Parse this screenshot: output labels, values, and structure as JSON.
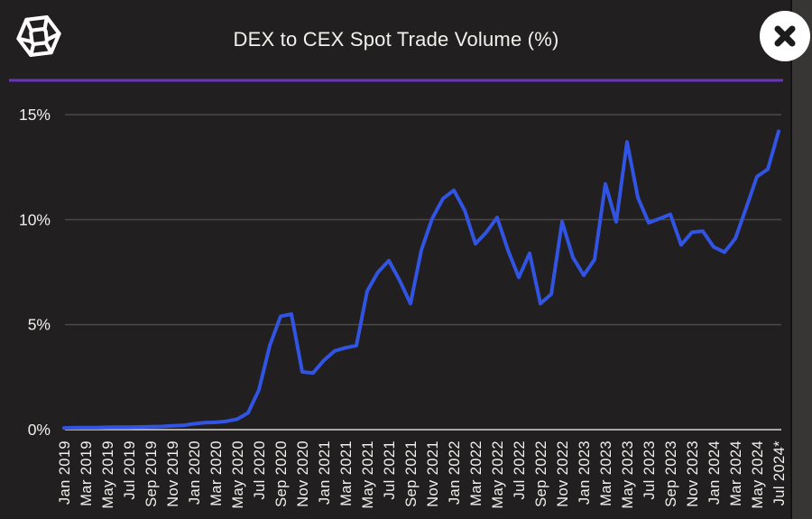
{
  "header": {
    "title": "DEX to CEX Spot Trade Volume (%)",
    "logo": "the-block-cube-logo",
    "close_icon": "x"
  },
  "colors": {
    "background": "#211f1f",
    "side_strip": "#383535",
    "line": "#3254e3",
    "grid": "#4c4949",
    "zero_axis": "#a9a7a4",
    "text": "#f1f0ee",
    "divider_purple": "#6a35bd",
    "close_bg": "#ffffff",
    "close_x": "#1c1b1b"
  },
  "chart_data": {
    "type": "line",
    "title": "DEX to CEX Spot Trade Volume (%)",
    "xlabel": "",
    "ylabel": "",
    "ylim": [
      0,
      15
    ],
    "grid": true,
    "legend_position": "none",
    "y_ticks": [
      {
        "label": "0%",
        "value": 0
      },
      {
        "label": "5%",
        "value": 5
      },
      {
        "label": "10%",
        "value": 10
      },
      {
        "label": "15%",
        "value": 15
      }
    ],
    "x_tick_labels": [
      "Jan 2019",
      "Mar 2019",
      "May 2019",
      "Jul 2019",
      "Sep 2019",
      "Nov 2019",
      "Jan 2020",
      "Mar 2020",
      "May 2020",
      "Jul 2020",
      "Sep 2020",
      "Nov 2020",
      "Jan 2021",
      "Mar 2021",
      "May 2021",
      "Jul 2021",
      "Sep 2021",
      "Nov 2021",
      "Jan 2022",
      "Mar 2022",
      "May 2022",
      "Jul 2022",
      "Sep 2022",
      "Nov 2022",
      "Jan 2023",
      "Mar 2023",
      "May 2023",
      "Jul 2023",
      "Sep 2023",
      "Nov 2023",
      "Jan 2024",
      "Mar 2024",
      "May 2024",
      "Jul 2024*"
    ],
    "series": [
      {
        "name": "DEX to CEX spot trade volume (%)",
        "interval": "monthly",
        "x_start": "Jan 2019",
        "x_end": "Jul 2024",
        "values": [
          0.08,
          0.09,
          0.1,
          0.1,
          0.11,
          0.12,
          0.12,
          0.13,
          0.14,
          0.15,
          0.18,
          0.2,
          0.28,
          0.33,
          0.35,
          0.4,
          0.5,
          0.8,
          1.9,
          4.0,
          5.4,
          5.5,
          2.75,
          2.7,
          3.3,
          3.75,
          3.9,
          4.0,
          6.6,
          7.5,
          8.05,
          7.1,
          6.0,
          8.55,
          10.05,
          11.0,
          11.4,
          10.45,
          8.85,
          9.4,
          10.1,
          8.55,
          7.25,
          8.4,
          6.0,
          6.45,
          9.9,
          8.2,
          7.35,
          8.1,
          11.7,
          9.9,
          13.7,
          11.05,
          9.85,
          10.05,
          10.25,
          8.8,
          9.4,
          9.45,
          8.7,
          8.45,
          9.1,
          10.55,
          12.05,
          12.4,
          14.2
        ]
      }
    ]
  }
}
